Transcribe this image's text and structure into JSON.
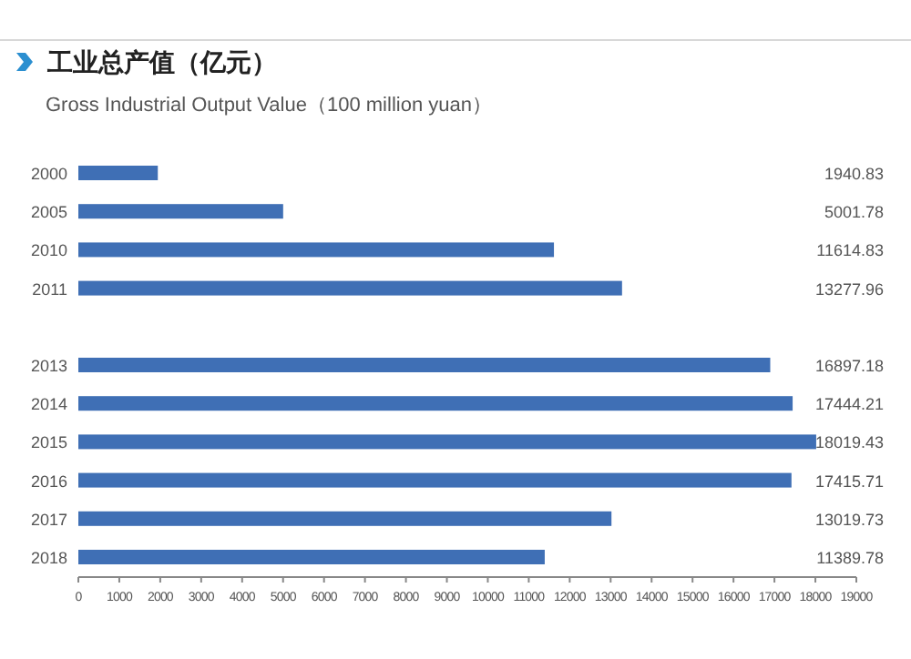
{
  "chart_data": {
    "type": "bar",
    "orientation": "horizontal",
    "title": "工业总产值（亿元）",
    "subtitle": "Gross Industrial Output Value（100 million yuan）",
    "categories": [
      "2000",
      "2005",
      "2010",
      "2011",
      null,
      "2013",
      "2014",
      "2015",
      "2016",
      "2017",
      "2018"
    ],
    "values": [
      1940.83,
      5001.78,
      11614.83,
      13277.96,
      null,
      16897.18,
      17444.21,
      18019.43,
      17415.71,
      13019.73,
      11389.78
    ],
    "color": "#3f6fb5",
    "data_labels": true,
    "xlim": [
      0,
      19000
    ],
    "xticks": [
      0,
      1000,
      2000,
      3000,
      4000,
      5000,
      6000,
      7000,
      8000,
      9000,
      10000,
      11000,
      12000,
      13000,
      14000,
      15000,
      16000,
      17000,
      18000,
      19000
    ],
    "line_style": "solid"
  }
}
